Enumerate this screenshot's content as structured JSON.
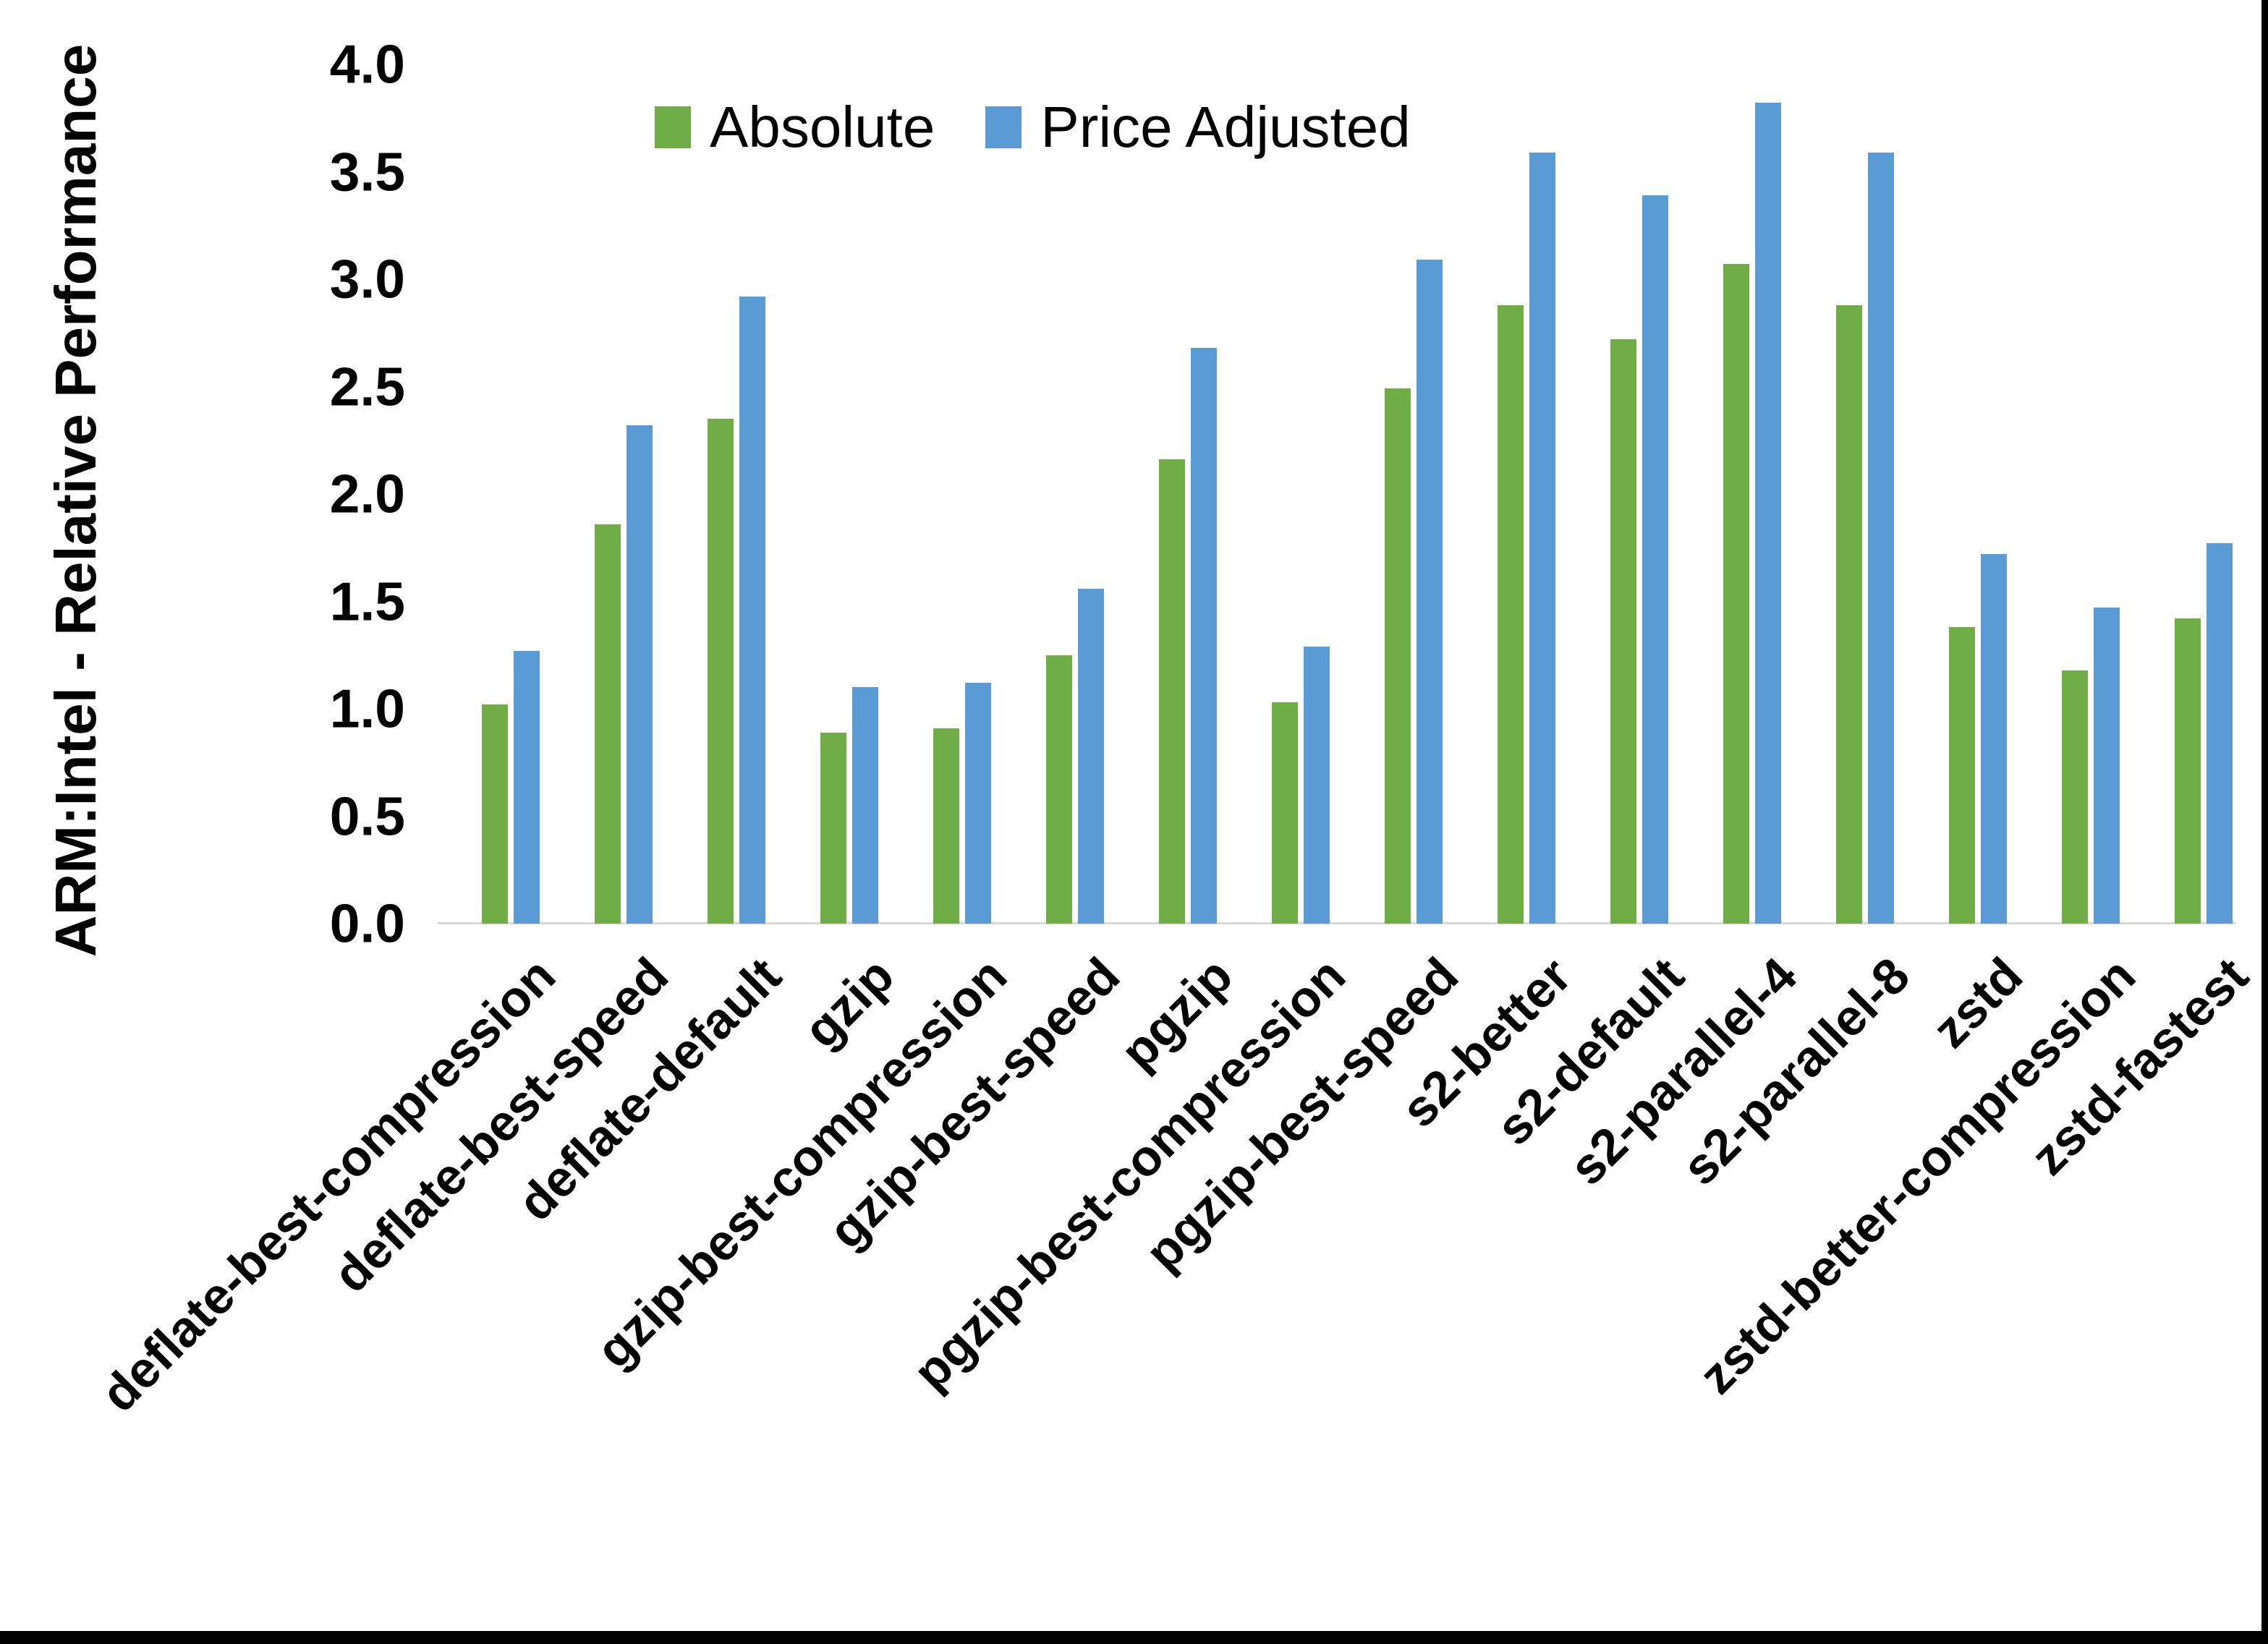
{
  "chart_data": {
    "type": "bar",
    "title": "",
    "ylabel": "ARM:Intel - Relative Performance",
    "xlabel": "",
    "ylim": [
      0.0,
      4.0
    ],
    "ytick_labels": [
      "0.0",
      "0.5",
      "1.0",
      "1.5",
      "2.0",
      "2.5",
      "3.0",
      "3.5",
      "4.0"
    ],
    "grid": false,
    "legend_position": "top-center",
    "background_color": "#FFFFFF",
    "axis_line_color": "#D9D9D9",
    "text_color": "#000000",
    "categories": [
      "deflate-best-compression",
      "deflate-best-speed",
      "deflate-default",
      "gzip",
      "gzip-best-compression",
      "gzip-best-speed",
      "pgzip",
      "pgzip-best-compression",
      "pgzip-best-speed",
      "s2-better",
      "s2-default",
      "s2-parallel-4",
      "s2-parallel-8",
      "zstd",
      "zstd-better-compression",
      "zstd-fastest"
    ],
    "series": [
      {
        "name": "Absolute",
        "color": "#70AD47",
        "values": [
          1.02,
          1.86,
          2.35,
          0.89,
          0.91,
          1.25,
          2.16,
          1.03,
          2.49,
          2.88,
          2.72,
          3.07,
          2.88,
          1.38,
          1.18,
          1.42
        ]
      },
      {
        "name": "Price Adjusted",
        "color": "#5B9BD5",
        "values": [
          1.27,
          2.32,
          2.92,
          1.1,
          1.12,
          1.56,
          2.68,
          1.29,
          3.09,
          3.59,
          3.39,
          3.82,
          3.59,
          1.72,
          1.47,
          1.77
        ]
      }
    ]
  }
}
